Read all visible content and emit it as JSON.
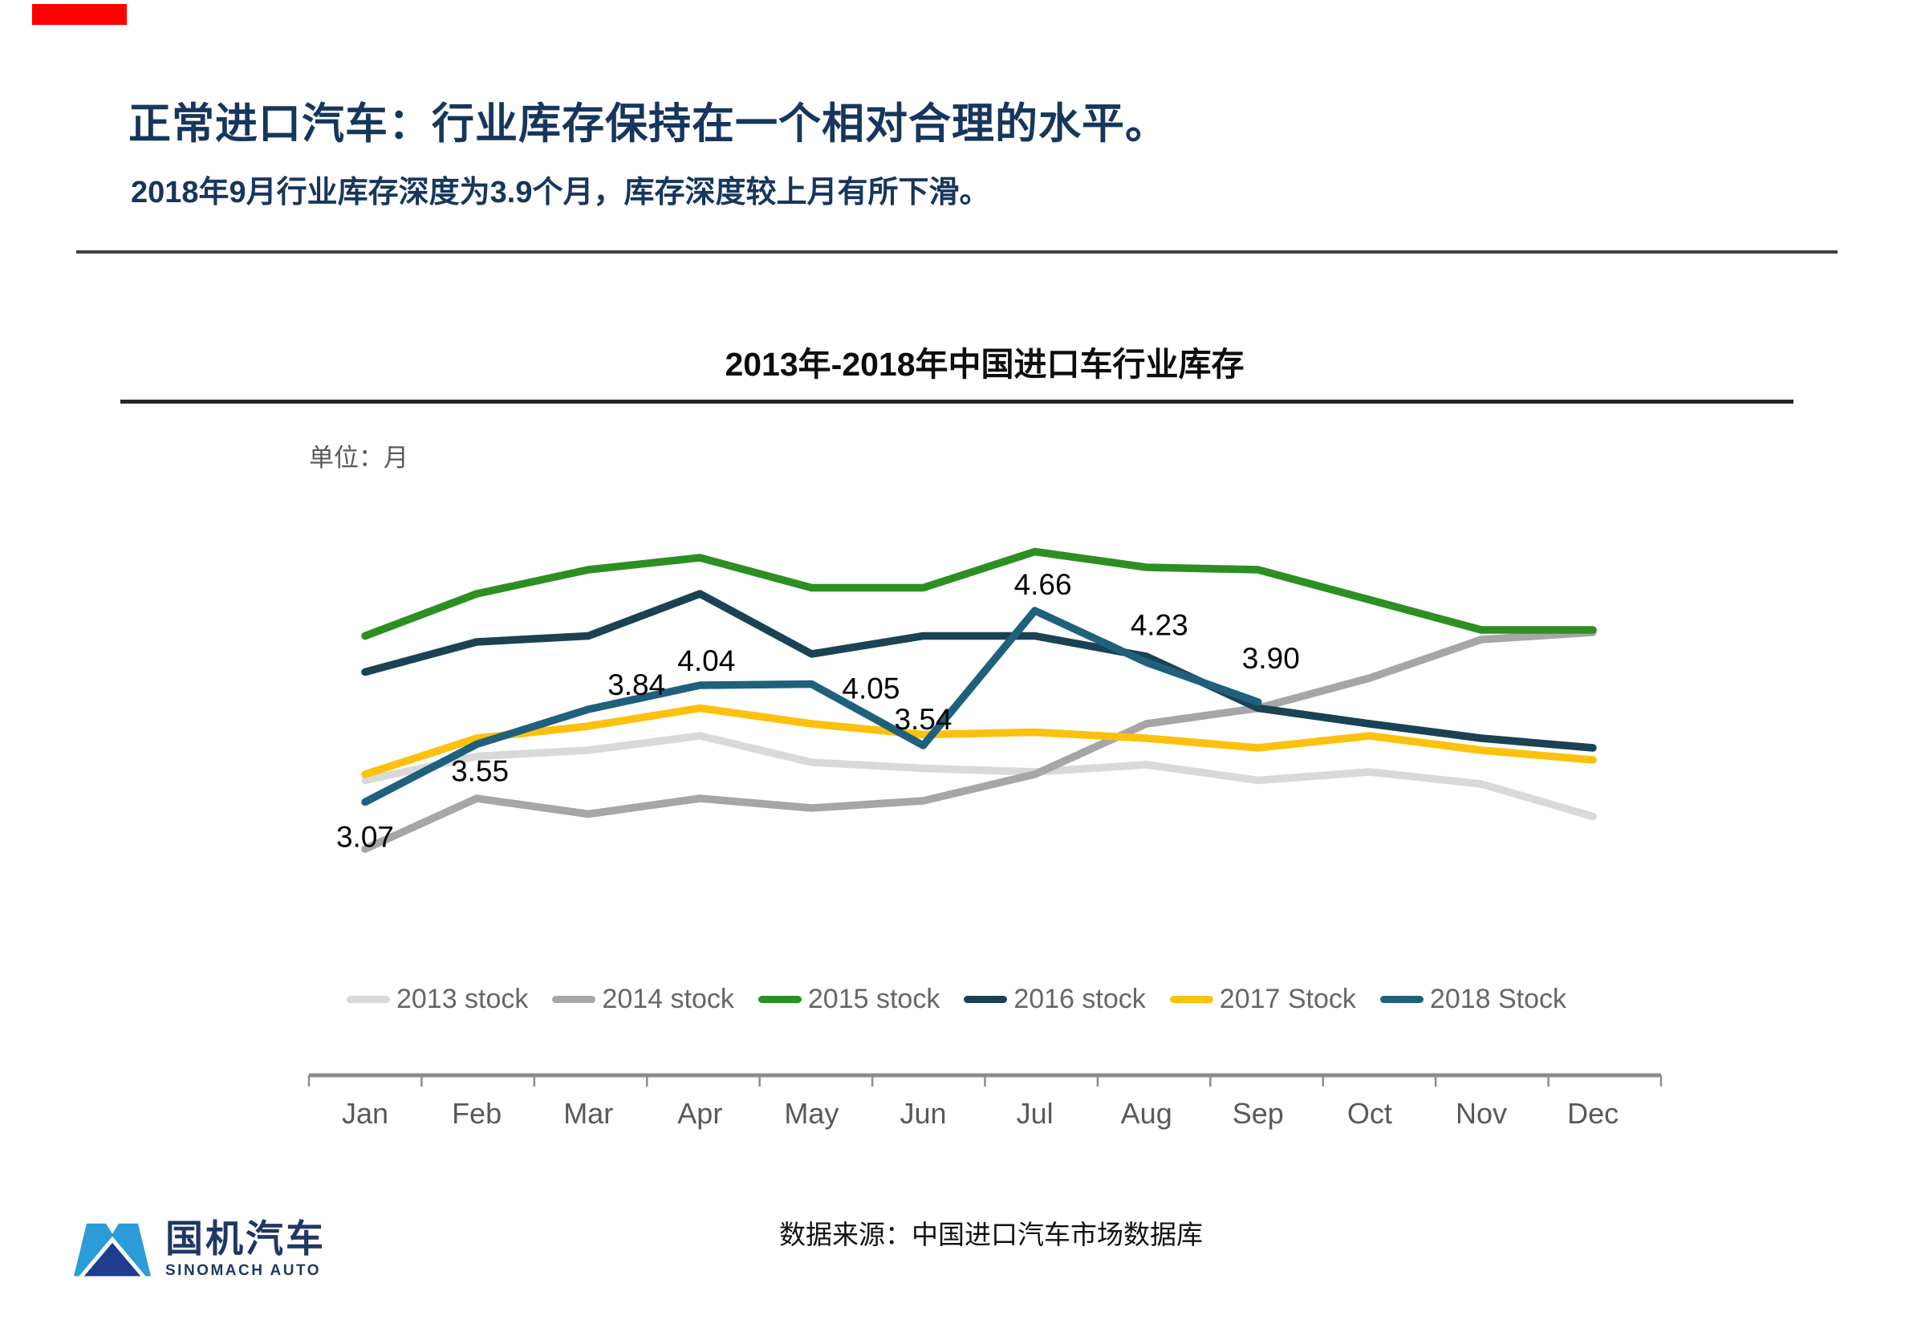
{
  "page": {
    "title": "正常进口汽车：行业库存保持在一个相对合理的水平。",
    "subtitle": "2018年9月行业库存深度为3.9个月，库存深度较上月有所下滑。",
    "source": "数据来源：中国进口汽车市场数据库"
  },
  "logo": {
    "cn": "国机汽车",
    "en": "SINOMACH AUTO"
  },
  "colors": {
    "title_navy": "#17365D",
    "red_bar": "#FF0000",
    "axis_gray": "#8C8C8C",
    "axis_text": "#595959",
    "legend_text": "#666666",
    "logo_light_blue": "#2B9CD8",
    "logo_dark_blue": "#1E3D8F"
  },
  "chart_data": {
    "type": "line",
    "title": "2013年-2018年中国进口车行业库存",
    "unit_label": "单位：月",
    "categories": [
      "Jan",
      "Feb",
      "Mar",
      "Apr",
      "May",
      "Jun",
      "Jul",
      "Aug",
      "Sep",
      "Oct",
      "Nov",
      "Dec"
    ],
    "ylim": [
      2.5,
      5.5
    ],
    "grid": false,
    "legend_position": "bottom",
    "series": [
      {
        "name": "2013 stock",
        "color": "#D9D9D9",
        "values": [
          3.25,
          3.45,
          3.5,
          3.62,
          3.4,
          3.35,
          3.32,
          3.38,
          3.25,
          3.32,
          3.22,
          2.95
        ]
      },
      {
        "name": "2014 stock",
        "color": "#A6A6A6",
        "values": [
          2.68,
          3.1,
          2.97,
          3.1,
          3.02,
          3.08,
          3.3,
          3.72,
          3.85,
          4.1,
          4.42,
          4.48
        ]
      },
      {
        "name": "2015 stock",
        "color": "#2D8F21",
        "values": [
          4.45,
          4.8,
          5.0,
          5.1,
          4.85,
          4.85,
          5.15,
          5.02,
          5.0,
          4.75,
          4.5,
          4.5
        ]
      },
      {
        "name": "2016 stock",
        "color": "#1A4254",
        "values": [
          4.15,
          4.4,
          4.45,
          4.8,
          4.3,
          4.45,
          4.45,
          4.28,
          3.85,
          3.72,
          3.6,
          3.52
        ]
      },
      {
        "name": "2017 Stock",
        "color": "#FCC10E",
        "values": [
          3.3,
          3.6,
          3.7,
          3.85,
          3.72,
          3.63,
          3.65,
          3.6,
          3.52,
          3.62,
          3.5,
          3.42
        ]
      },
      {
        "name": "2018 Stock",
        "color": "#1F617C",
        "values": [
          3.07,
          3.55,
          3.84,
          4.04,
          4.05,
          3.54,
          4.66,
          4.23,
          3.9
        ],
        "labels": [
          "3.07",
          "3.55",
          "3.84",
          "4.04",
          "4.05",
          "3.54",
          "4.66",
          "4.23",
          "3.90"
        ],
        "label_offsets": [
          [
            0,
            46
          ],
          [
            4,
            36
          ],
          [
            60,
            -28
          ],
          [
            8,
            -28
          ],
          [
            74,
            8
          ],
          [
            0,
            -30
          ],
          [
            10,
            -30
          ],
          [
            16,
            -44
          ],
          [
            16,
            -52
          ]
        ]
      }
    ]
  }
}
